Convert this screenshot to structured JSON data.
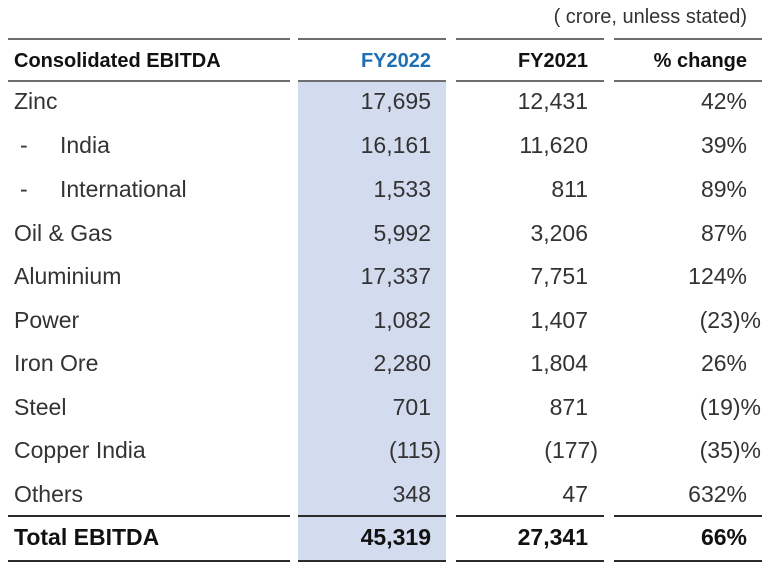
{
  "unit_note": "( crore, unless stated)",
  "header": {
    "label": "Consolidated EBITDA",
    "col1": "FY2022",
    "col2": "FY2021",
    "col3": "% change"
  },
  "rows": [
    {
      "label": "Zinc",
      "fy2022": "17,695",
      "fy2021": "12,431",
      "change": "42%"
    },
    {
      "label": "India",
      "prefix": "-",
      "fy2022": "16,161",
      "fy2021": "11,620",
      "change": "39%"
    },
    {
      "label": "International",
      "prefix": "-",
      "fy2022": "1,533",
      "fy2021": "811",
      "change": "89%"
    },
    {
      "label": "Oil & Gas",
      "fy2022": "5,992",
      "fy2021": "3,206",
      "change": "87%"
    },
    {
      "label": "Aluminium",
      "fy2022": "17,337",
      "fy2021": "7,751",
      "change": "124%"
    },
    {
      "label": "Power",
      "fy2022": "1,082",
      "fy2021": "1,407",
      "change": "(23)%"
    },
    {
      "label": "Iron Ore",
      "fy2022": "2,280",
      "fy2021": "1,804",
      "change": "26%"
    },
    {
      "label": "Steel",
      "fy2022": "701",
      "fy2021": "871",
      "change": "(19)%"
    },
    {
      "label": "Copper India",
      "fy2022": "(115)",
      "fy2021": "(177)",
      "change": "(35)%"
    },
    {
      "label": "Others",
      "fy2022": "348",
      "fy2021": "47",
      "change": "632%"
    }
  ],
  "total": {
    "label": "Total EBITDA",
    "fy2022": "45,319",
    "fy2021": "27,341",
    "change": "66%"
  },
  "colors": {
    "fy_highlight": "#d3dbef",
    "fy_header": "#1f6fb5"
  }
}
